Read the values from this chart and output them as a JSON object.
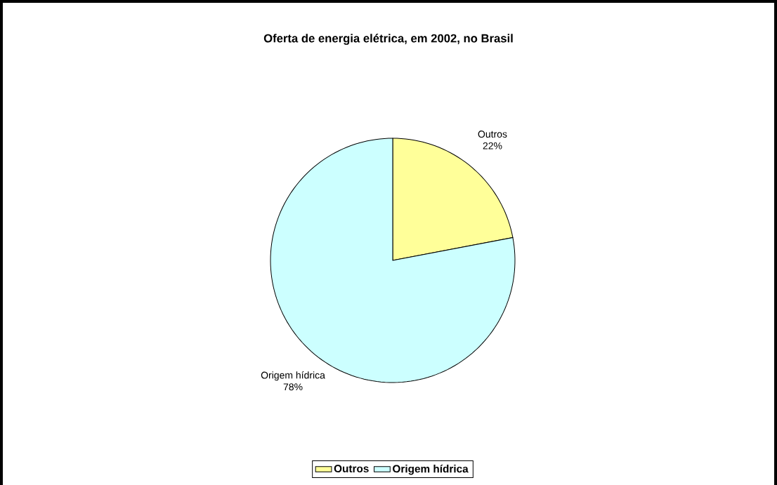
{
  "chart_data": {
    "type": "pie",
    "title": "Oferta de energia elétrica, em 2002, no Brasil",
    "categories": [
      "Outros",
      "Origem hídrica"
    ],
    "values": [
      22,
      78
    ],
    "value_labels": [
      "22%",
      "78%"
    ],
    "colors": [
      "#ffff99",
      "#ccffff"
    ],
    "legend": "bottom"
  }
}
